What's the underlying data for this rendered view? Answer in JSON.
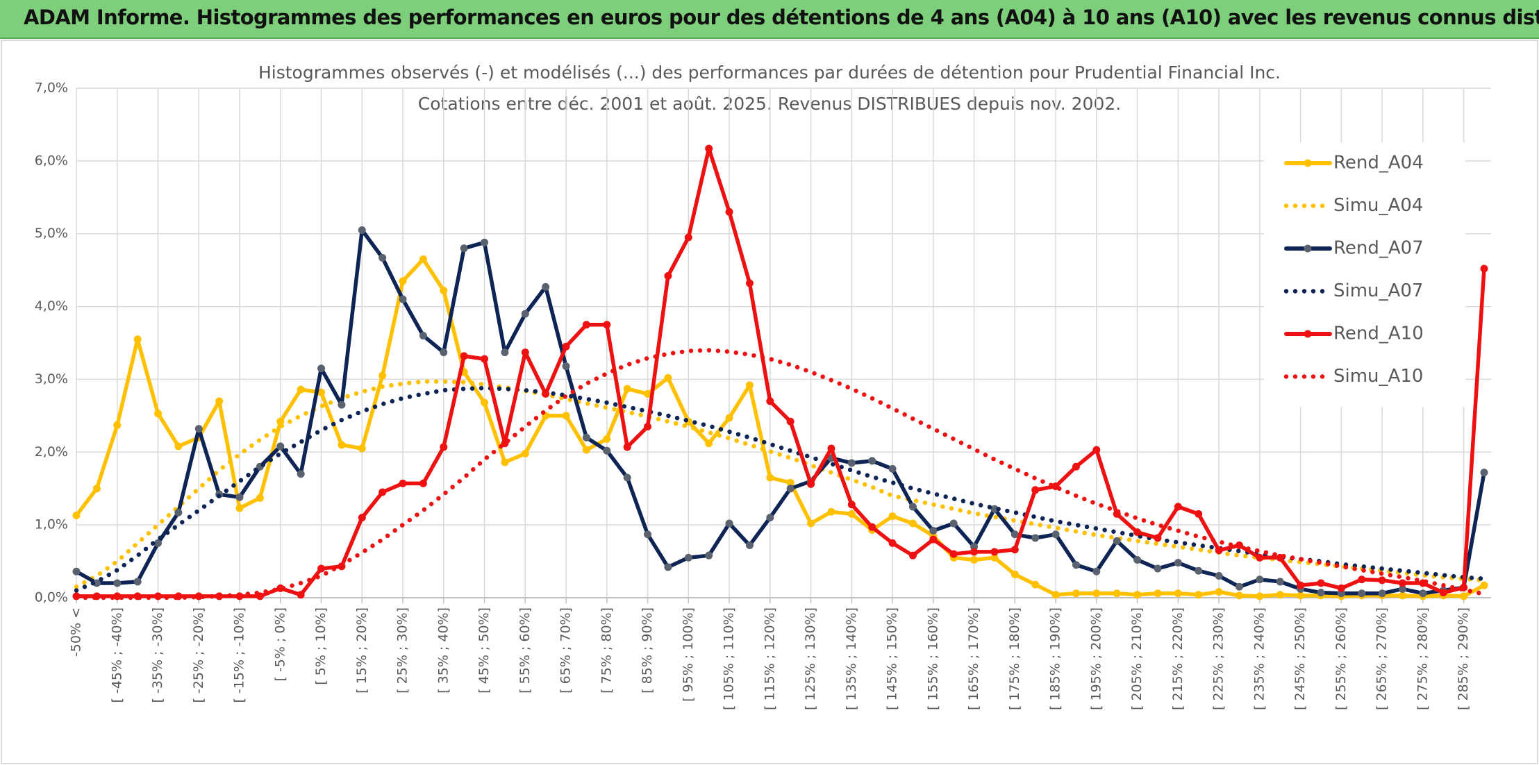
{
  "header": {
    "title": "ADAM Informe. Histogrammes des performances en euros pour des détentions de 4 ans (A04) à 10 ans (A10) avec les revenus connus distribués"
  },
  "chart_data": {
    "type": "line",
    "title": "Histogrammes observés (-) et modélisés (...) des performances par durées de détention pour Prudential Financial Inc.",
    "subtitle": "Cotations entre déc. 2001 et août. 2025. Revenus DISTRIBUES depuis nov. 2002.",
    "legend": "right",
    "grid": true,
    "categories": [
      "-50% <",
      null,
      "[ -45% ; -40%]",
      null,
      "[ -35% ; -30%]",
      null,
      "[ -25% ; -20%]",
      null,
      "[ -15% ; -10%]",
      null,
      "[ -5% ; 0%]",
      null,
      "[ 5% ; 10%]",
      null,
      "[ 15% ; 20%]",
      null,
      "[ 25% ; 30%]",
      null,
      "[ 35% ; 40%]",
      null,
      "[ 45% ; 50%]",
      null,
      "[ 55% ; 60%]",
      null,
      "[ 65% ; 70%]",
      null,
      "[ 75% ; 80%]",
      null,
      "[ 85% ; 90%]",
      null,
      "[ 95% ; 100%]",
      null,
      "[ 105% ; 110%]",
      null,
      "[ 115% ; 120%]",
      null,
      "[ 125% ; 130%]",
      null,
      "[ 135% ; 140%]",
      null,
      "[ 145% ; 150%]",
      null,
      "[ 155% ; 160%]",
      null,
      "[ 165% ; 170%]",
      null,
      "[ 175% ; 180%]",
      null,
      "[ 185% ; 190%]",
      null,
      "[ 195% ; 200%]",
      null,
      "[ 205% ; 210%]",
      null,
      "[ 215% ; 220%]",
      null,
      "[ 225% ; 230%]",
      null,
      "[ 235% ; 240%]",
      null,
      "[ 245% ; 250%]",
      null,
      "[ 255% ; 260%]",
      null,
      "[ 265% ; 270%]",
      null,
      "[ 275% ; 280%]",
      null,
      "[ 285% ; 290%]",
      null
    ],
    "ylim": [
      0,
      7
    ],
    "yticks": [
      {
        "value": 0,
        "label": "0,0%"
      },
      {
        "value": 1,
        "label": "1,0%"
      },
      {
        "value": 2,
        "label": "2,0%"
      },
      {
        "value": 3,
        "label": "3,0%"
      },
      {
        "value": 4,
        "label": "4,0%"
      },
      {
        "value": 5,
        "label": "5,0%"
      },
      {
        "value": 6,
        "label": "6,0%"
      },
      {
        "value": 7,
        "label": "7,0%"
      }
    ],
    "series": [
      {
        "name": "Rend_A04",
        "color": "#ffc000",
        "style": "solid",
        "values": [
          1.13,
          1.5,
          2.37,
          3.55,
          2.53,
          2.08,
          2.2,
          2.7,
          1.23,
          1.37,
          2.42,
          2.86,
          2.82,
          2.1,
          2.05,
          3.05,
          4.35,
          4.65,
          4.22,
          3.1,
          2.68,
          1.86,
          1.98,
          2.5,
          2.5,
          2.03,
          2.18,
          2.87,
          2.8,
          3.02,
          2.42,
          2.12,
          2.47,
          2.92,
          1.65,
          1.58,
          1.02,
          1.18,
          1.15,
          0.93,
          1.12,
          1.02,
          0.85,
          0.55,
          0.52,
          0.55,
          0.32,
          0.18,
          0.04,
          0.06,
          0.06,
          0.06,
          0.04,
          0.06,
          0.06,
          0.04,
          0.08,
          0.03,
          0.02,
          0.04,
          0.03,
          0.03,
          0.02,
          0.03,
          0.03,
          0.03,
          0.02,
          0.03,
          0.02,
          0.17
        ]
      },
      {
        "name": "Simu_A04",
        "color": "#ffc000",
        "style": "dotted",
        "values": [
          0.15,
          0.3,
          0.5,
          0.75,
          1.0,
          1.25,
          1.5,
          1.75,
          1.97,
          2.17,
          2.35,
          2.5,
          2.63,
          2.74,
          2.83,
          2.9,
          2.94,
          2.97,
          2.97,
          2.96,
          2.93,
          2.89,
          2.84,
          2.79,
          2.73,
          2.67,
          2.61,
          2.55,
          2.49,
          2.42,
          2.35,
          2.27,
          2.19,
          2.1,
          2.01,
          1.92,
          1.82,
          1.72,
          1.62,
          1.52,
          1.4,
          1.34,
          1.28,
          1.22,
          1.16,
          1.11,
          1.06,
          1.01,
          0.96,
          0.91,
          0.86,
          0.82,
          0.78,
          0.74,
          0.7,
          0.66,
          0.62,
          0.58,
          0.55,
          0.52,
          0.49,
          0.46,
          0.43,
          0.4,
          0.37,
          0.34,
          0.31,
          0.28,
          0.26,
          0.24
        ]
      },
      {
        "name": "Rend_A07",
        "color": "#0d2454",
        "marker": "#5a6270",
        "style": "solid",
        "values": [
          0.36,
          0.2,
          0.2,
          0.22,
          0.75,
          1.17,
          2.32,
          1.42,
          1.38,
          1.8,
          2.08,
          1.7,
          3.15,
          2.65,
          5.05,
          4.67,
          4.1,
          3.6,
          3.37,
          4.8,
          4.88,
          3.37,
          3.9,
          4.27,
          3.18,
          2.2,
          2.02,
          1.65,
          0.87,
          0.42,
          0.55,
          0.58,
          1.02,
          0.72,
          1.1,
          1.5,
          1.6,
          1.92,
          1.85,
          1.88,
          1.77,
          1.25,
          0.92,
          1.02,
          0.7,
          1.22,
          0.87,
          0.82,
          0.87,
          0.45,
          0.36,
          0.78,
          0.52,
          0.4,
          0.48,
          0.37,
          0.3,
          0.15,
          0.25,
          0.22,
          0.12,
          0.07,
          0.06,
          0.06,
          0.06,
          0.12,
          0.06,
          0.1,
          0.14,
          1.72
        ]
      },
      {
        "name": "Simu_A07",
        "color": "#0d2454",
        "style": "dotted",
        "values": [
          0.1,
          0.22,
          0.38,
          0.58,
          0.8,
          1.0,
          1.2,
          1.4,
          1.6,
          1.8,
          1.98,
          2.14,
          2.3,
          2.44,
          2.56,
          2.66,
          2.74,
          2.8,
          2.85,
          2.87,
          2.88,
          2.87,
          2.85,
          2.82,
          2.78,
          2.73,
          2.68,
          2.62,
          2.56,
          2.5,
          2.43,
          2.36,
          2.28,
          2.2,
          2.11,
          2.02,
          1.93,
          1.84,
          1.75,
          1.66,
          1.58,
          1.5,
          1.43,
          1.36,
          1.29,
          1.23,
          1.17,
          1.11,
          1.05,
          1.0,
          0.95,
          0.9,
          0.85,
          0.8,
          0.76,
          0.72,
          0.68,
          0.64,
          0.6,
          0.56,
          0.53,
          0.5,
          0.46,
          0.43,
          0.4,
          0.37,
          0.34,
          0.31,
          0.28,
          0.26
        ]
      },
      {
        "name": "Rend_A10",
        "color": "#ee1111",
        "style": "solid",
        "values": [
          0.02,
          0.02,
          0.02,
          0.02,
          0.02,
          0.02,
          0.02,
          0.02,
          0.02,
          0.02,
          0.13,
          0.04,
          0.4,
          0.43,
          1.1,
          1.45,
          1.57,
          1.57,
          2.07,
          3.32,
          3.28,
          2.12,
          3.37,
          2.8,
          3.45,
          3.75,
          3.75,
          2.07,
          2.35,
          4.42,
          4.95,
          6.17,
          5.3,
          4.32,
          2.7,
          2.42,
          1.56,
          2.05,
          1.28,
          0.97,
          0.75,
          0.58,
          0.8,
          0.6,
          0.63,
          0.63,
          0.66,
          1.48,
          1.53,
          1.8,
          2.03,
          1.15,
          0.9,
          0.82,
          1.25,
          1.15,
          0.65,
          0.72,
          0.55,
          0.55,
          0.17,
          0.2,
          0.13,
          0.25,
          0.24,
          0.2,
          0.2,
          0.07,
          0.14,
          4.52
        ]
      },
      {
        "name": "Simu_A10",
        "color": "#ee1111",
        "style": "dotted",
        "values": [
          0,
          0,
          0,
          0,
          0,
          0,
          0.01,
          0.02,
          0.04,
          0.07,
          0.12,
          0.2,
          0.3,
          0.45,
          0.62,
          0.8,
          1.0,
          1.2,
          1.42,
          1.65,
          1.9,
          2.12,
          2.35,
          2.57,
          2.77,
          2.94,
          3.08,
          3.2,
          3.29,
          3.35,
          3.39,
          3.4,
          3.38,
          3.34,
          3.28,
          3.2,
          3.1,
          2.99,
          2.87,
          2.74,
          2.6,
          2.46,
          2.32,
          2.18,
          2.04,
          1.9,
          1.77,
          1.64,
          1.52,
          1.4,
          1.29,
          1.19,
          1.09,
          1.0,
          0.92,
          0.84,
          0.77,
          0.7,
          0.64,
          0.58,
          0.53,
          0.48,
          0.43,
          0.38,
          0.33,
          0.28,
          0.23,
          0.17,
          0.11,
          0.05
        ]
      }
    ]
  }
}
